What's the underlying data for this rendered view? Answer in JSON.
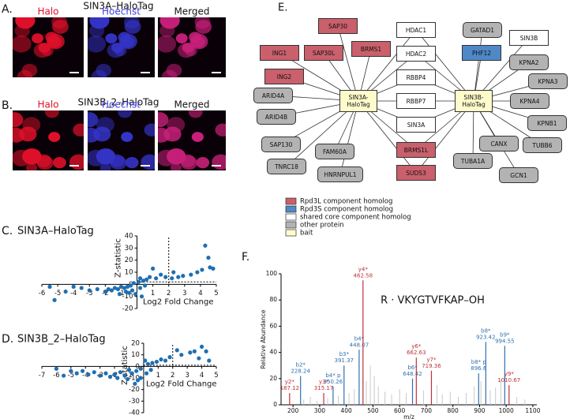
{
  "panel_a": {
    "label": "A.",
    "title": "SIN3A–HaloTag",
    "channels": [
      "Halo",
      "Hoechst",
      "Merged"
    ]
  },
  "panel_b": {
    "label": "B.",
    "title": "SIN3B_2–HaloTag",
    "channels": [
      "Halo",
      "Hoechst",
      "Merged"
    ]
  },
  "panel_e": {
    "label": "E.",
    "nodes": [
      {
        "label": "SIN3A-HaloTag",
        "color": "#fffccc"
      },
      {
        "label": "SIN3B-HaloTag",
        "color": "#fffccc"
      },
      {
        "label": "SAP30",
        "color": "#c9606c"
      },
      {
        "label": "ING1",
        "color": "#c9606c"
      },
      {
        "label": "SAP30L",
        "color": "#c9606c"
      },
      {
        "label": "BRMS1",
        "color": "#c9606c"
      },
      {
        "label": "ING2",
        "color": "#c9606c"
      },
      {
        "label": "ARID4A",
        "color": "#b3b3b3"
      },
      {
        "label": "ARID4B",
        "color": "#b3b3b3"
      },
      {
        "label": "SAP130",
        "color": "#b3b3b3"
      },
      {
        "label": "FAM60A",
        "color": "#b3b3b3"
      },
      {
        "label": "TNRC18",
        "color": "#b3b3b3"
      },
      {
        "label": "HNRNPUL1",
        "color": "#b3b3b3"
      },
      {
        "label": "HDAC1",
        "color": "#ffffff"
      },
      {
        "label": "HDAC2",
        "color": "#ffffff"
      },
      {
        "label": "RBBP4",
        "color": "#ffffff"
      },
      {
        "label": "RBBP7",
        "color": "#ffffff"
      },
      {
        "label": "SIN3A",
        "color": "#ffffff"
      },
      {
        "label": "BRMS1L",
        "color": "#c9606c"
      },
      {
        "label": "SUDS3",
        "color": "#c9606c"
      },
      {
        "label": "GATAD1",
        "color": "#b3b3b3"
      },
      {
        "label": "PHF12",
        "color": "#4f88c6"
      },
      {
        "label": "SIN3B",
        "color": "#ffffff"
      },
      {
        "label": "KPNA2",
        "color": "#b3b3b3"
      },
      {
        "label": "KPNA3",
        "color": "#b3b3b3"
      },
      {
        "label": "KPNA4",
        "color": "#b3b3b3"
      },
      {
        "label": "KPNB1",
        "color": "#b3b3b3"
      },
      {
        "label": "CANX",
        "color": "#b3b3b3"
      },
      {
        "label": "TUBB6",
        "color": "#b3b3b3"
      },
      {
        "label": "TUBA1A",
        "color": "#b3b3b3"
      },
      {
        "label": "GCN1",
        "color": "#b3b3b3"
      }
    ],
    "legend": [
      {
        "label": "Rpd3L component homolog",
        "color": "#c9606c"
      },
      {
        "label": "Rpd3S component homolog",
        "color": "#4f88c6"
      },
      {
        "label": "shared core component homolog",
        "color": "#ffffff"
      },
      {
        "label": "other protein",
        "color": "#b3b3b3"
      },
      {
        "label": "bait",
        "color": "#fffccc"
      }
    ]
  },
  "chart_data": [
    {
      "type": "scatter",
      "panel_label": "C.",
      "title": "SIN3A–HaloTag",
      "xlabel": "Log2 Fold Change",
      "ylabel": "Z-statistic",
      "color": "#1f6fb2",
      "xlim": [
        -6,
        5
      ],
      "ylim": [
        -20,
        40
      ],
      "xticks": [
        -6,
        -5,
        -4,
        -3,
        -2,
        -1,
        1,
        2,
        3,
        4,
        5
      ],
      "yticks": [
        -20,
        -10,
        0,
        10,
        20,
        30,
        40
      ],
      "threshold_x": 2,
      "threshold_y": 2,
      "x": [
        4.3,
        4.5,
        4.6,
        4.8,
        4.1,
        3.8,
        3.4,
        2.9,
        2.6,
        2.3,
        2.2,
        1.8,
        1.5,
        1.2,
        1.0,
        0.8,
        0.6,
        0.4,
        0.2,
        0.1,
        -0.2,
        -0.4,
        -0.6,
        -0.8,
        -1.0,
        -1.2,
        -1.4,
        -1.6,
        -1.8,
        -2.0,
        -0.3,
        -0.5,
        -0.1,
        0.2,
        0.5,
        0.3,
        -0.7,
        -1.1,
        -2.5,
        -3.0,
        -3.5,
        -4.0,
        -4.5,
        -5.2,
        -5.5
      ],
      "y": [
        32,
        22,
        14,
        13,
        12,
        10,
        8,
        7,
        6,
        10,
        5,
        6,
        8,
        5,
        13,
        6,
        4,
        3,
        5,
        2,
        1,
        -1,
        -2,
        -3,
        -2,
        -4,
        -3,
        -5,
        -4,
        -6,
        -5,
        -7,
        -8,
        -3,
        -1,
        -10,
        -6,
        -8,
        -4,
        -5,
        -3,
        -2,
        -6,
        -13,
        -2
      ]
    },
    {
      "type": "scatter",
      "panel_label": "D.",
      "title": "SIN3B_2–HaloTag",
      "xlabel": "Log2 Fold Change",
      "ylabel": "Z-statistic",
      "color": "#1f6fb2",
      "xlim": [
        -7,
        5
      ],
      "ylim": [
        -40,
        20
      ],
      "xticks": [
        -7,
        -6,
        -5,
        -4,
        -3,
        -2,
        -1,
        1,
        2,
        3,
        4,
        5
      ],
      "yticks": [
        -40,
        -30,
        -20,
        -10,
        0,
        10,
        20
      ],
      "threshold_x": 2,
      "threshold_y": 1,
      "x": [
        4.0,
        4.3,
        3.5,
        3.2,
        2.6,
        2.3,
        3.8,
        4.5,
        1.8,
        1.5,
        1.2,
        0.9,
        0.6,
        0.3,
        0.1,
        -0.2,
        -0.5,
        -0.8,
        -1.0,
        -1.3,
        -1.6,
        -2.0,
        -2.3,
        -2.6,
        -3.0,
        -3.4,
        -3.8,
        -4.2,
        -0.4,
        -0.6,
        -0.2,
        0.2,
        0.5,
        -1.8,
        -1.1,
        -5.5,
        -6.0,
        -5.0,
        -4.6
      ],
      "y": [
        17,
        13,
        13,
        12,
        10,
        14,
        7,
        5,
        8,
        5,
        6,
        4,
        3,
        2,
        5,
        -2,
        -4,
        -6,
        -3,
        -8,
        -5,
        -7,
        -9,
        -6,
        -8,
        -5,
        -7,
        -4,
        -12,
        -15,
        -10,
        -6,
        -3,
        -10,
        -11,
        -8,
        -2,
        -4,
        -6
      ]
    },
    {
      "type": "spectrum",
      "panel_label": "F.",
      "title": "R · VKYGTVFKAP–OH",
      "xlabel": "m/z",
      "ylabel": "Relative Abundance",
      "xlim": [
        155,
        1115
      ],
      "ylim": [
        0,
        100
      ],
      "xticks": [
        200,
        300,
        400,
        500,
        600,
        700,
        800,
        900,
        1000,
        1100
      ],
      "yticks": [
        0,
        20,
        40,
        60,
        80,
        100
      ],
      "background_color": "#c8c8c8",
      "background": {
        "x": [
          240,
          265,
          290,
          330,
          370,
          410,
          430,
          475,
          490,
          505,
          520,
          545,
          570,
          600,
          625,
          690,
          740,
          760,
          790,
          820,
          850,
          880,
          905,
          940,
          960,
          980,
          1040,
          1070
        ],
        "values": [
          4,
          6,
          3,
          5,
          7,
          9,
          12,
          18,
          30,
          22,
          14,
          10,
          8,
          12,
          9,
          11,
          15,
          8,
          10,
          6,
          9,
          14,
          18,
          11,
          13,
          20,
          6,
          4
        ]
      },
      "peaks": [
        {
          "ion": "y2*",
          "mz": 187.12,
          "intensity": 9,
          "color": "#c0303a"
        },
        {
          "ion": "b2*",
          "mz": 228.24,
          "intensity": 22,
          "color": "#3070b0"
        },
        {
          "ion": "y3*",
          "mz": 315.17,
          "intensity": 9,
          "color": "#c0303a"
        },
        {
          "ion": "b4* p",
          "mz": 350.26,
          "intensity": 14,
          "color": "#3070b0"
        },
        {
          "ion": "b3*",
          "mz": 391.37,
          "intensity": 30,
          "color": "#3070b0"
        },
        {
          "ion": "b4*",
          "mz": 448.07,
          "intensity": 42,
          "color": "#3070b0"
        },
        {
          "ion": "y4*",
          "mz": 462.58,
          "intensity": 95,
          "color": "#c0303a"
        },
        {
          "ion": "b6*",
          "mz": 648.42,
          "intensity": 20,
          "color": "#3070b0"
        },
        {
          "ion": "y6*",
          "mz": 662.63,
          "intensity": 36,
          "color": "#c0303a"
        },
        {
          "ion": "y7*",
          "mz": 719.36,
          "intensity": 26,
          "color": "#c0303a"
        },
        {
          "ion": "b8* p",
          "mz": 896.6,
          "intensity": 24,
          "color": "#3070b0"
        },
        {
          "ion": "b8*",
          "mz": 923.42,
          "intensity": 48,
          "color": "#3070b0"
        },
        {
          "ion": "b9*",
          "mz": 994.55,
          "intensity": 45,
          "color": "#3070b0"
        },
        {
          "ion": "y9*",
          "mz": 1010.67,
          "intensity": 15,
          "color": "#c0303a"
        }
      ]
    }
  ]
}
